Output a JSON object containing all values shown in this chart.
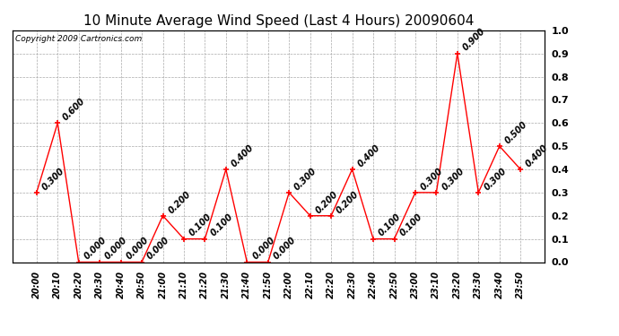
{
  "title": "10 Minute Average Wind Speed (Last 4 Hours) 20090604",
  "copyright": "Copyright 2009 Cartronics.com",
  "times": [
    "20:00",
    "20:10",
    "20:20",
    "20:30",
    "20:40",
    "20:50",
    "21:00",
    "21:10",
    "21:20",
    "21:30",
    "21:40",
    "21:50",
    "22:00",
    "22:10",
    "22:20",
    "22:30",
    "22:40",
    "22:50",
    "23:00",
    "23:10",
    "23:20",
    "23:30",
    "23:40",
    "23:50"
  ],
  "values": [
    0.3,
    0.6,
    0.0,
    0.0,
    0.0,
    0.0,
    0.2,
    0.1,
    0.1,
    0.4,
    0.0,
    0.0,
    0.3,
    0.2,
    0.2,
    0.4,
    0.1,
    0.1,
    0.3,
    0.3,
    0.9,
    0.3,
    0.5,
    0.4
  ],
  "line_color": "#ff0000",
  "marker": "+",
  "marker_size": 5,
  "ylim": [
    0.0,
    1.0
  ],
  "yticks": [
    0.0,
    0.1,
    0.2,
    0.3,
    0.4,
    0.5,
    0.6,
    0.7,
    0.8,
    0.9,
    1.0
  ],
  "background_color": "#ffffff",
  "grid_color": "#aaaaaa",
  "title_fontsize": 11,
  "label_fontsize": 7,
  "annotation_fontsize": 7,
  "copyright_fontsize": 6.5
}
